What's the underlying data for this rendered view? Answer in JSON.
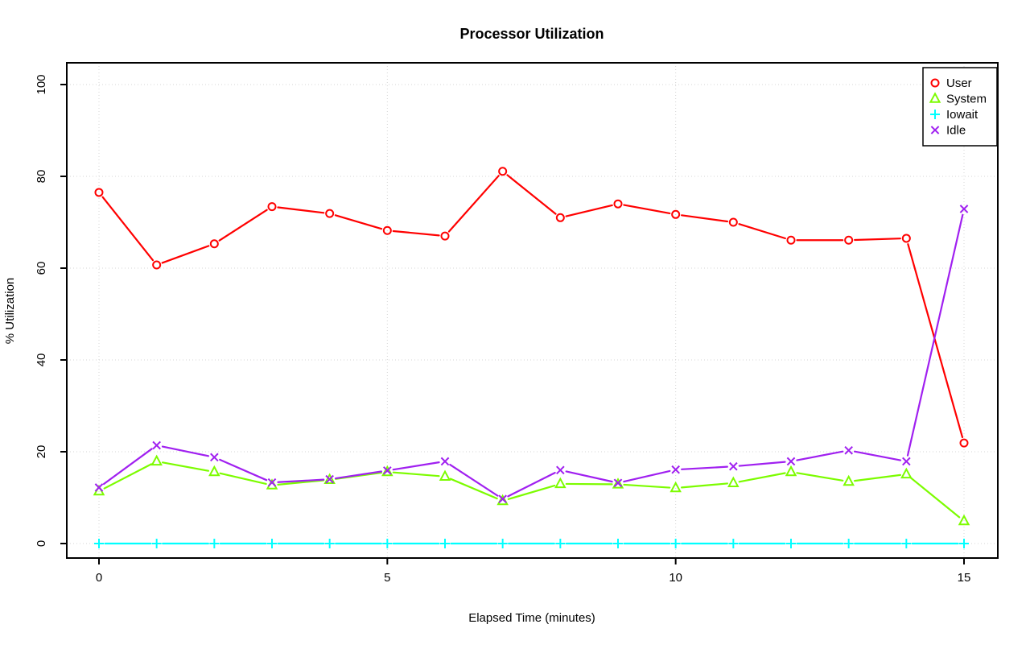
{
  "page": {
    "background_color": "#ffffff"
  },
  "chart_data": {
    "type": "line",
    "title": "Processor Utilization",
    "xlabel": "Elapsed Time (minutes)",
    "ylabel": "% Utilization",
    "x": [
      0,
      1,
      2,
      3,
      4,
      5,
      6,
      7,
      8,
      9,
      10,
      11,
      12,
      13,
      14,
      15
    ],
    "x_ticks": [
      0,
      5,
      10,
      15
    ],
    "y_ticks": [
      0,
      20,
      40,
      60,
      80,
      100
    ],
    "xlim": [
      0,
      15
    ],
    "ylim": [
      0,
      100
    ],
    "grid": "dotted-lightgray-at-ticks",
    "legend_position": "top-right",
    "line_style": "lines-with-gaps-at-markers",
    "series": [
      {
        "name": "User",
        "color": "#FF0000",
        "marker": "circle",
        "values": [
          76.5,
          60.7,
          65.3,
          73.4,
          71.9,
          68.2,
          67.0,
          81.1,
          71.0,
          74.0,
          71.7,
          70.0,
          66.1,
          66.1,
          66.5,
          21.9
        ]
      },
      {
        "name": "System",
        "color": "#7CFC00",
        "marker": "triangle",
        "values": [
          11.4,
          17.9,
          15.6,
          12.7,
          13.9,
          15.6,
          14.6,
          9.3,
          13.0,
          12.9,
          12.1,
          13.2,
          15.6,
          13.5,
          15.1,
          4.9
        ]
      },
      {
        "name": "Iowait",
        "color": "#00FFFF",
        "marker": "plus",
        "values": [
          0,
          0,
          0,
          0,
          0,
          0,
          0,
          0,
          0,
          0,
          0,
          0,
          0,
          0,
          0,
          0
        ]
      },
      {
        "name": "Idle",
        "color": "#A020F0",
        "marker": "x",
        "values": [
          12.2,
          21.4,
          18.8,
          13.3,
          14.0,
          15.9,
          17.9,
          9.7,
          16.0,
          13.2,
          16.1,
          16.8,
          17.9,
          20.3,
          17.9,
          72.9
        ]
      }
    ]
  }
}
